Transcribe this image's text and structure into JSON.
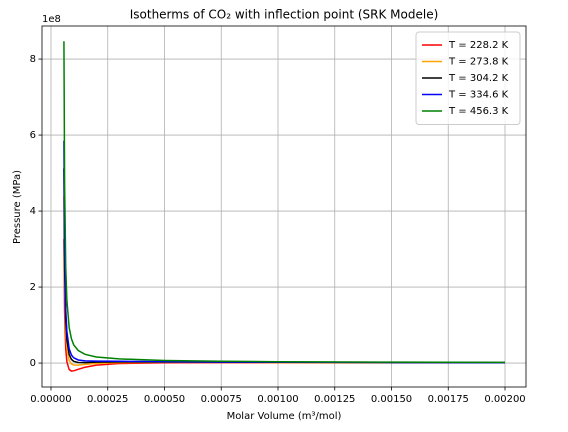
{
  "chart_data": {
    "type": "line",
    "title": "Isotherms of CO₂ with inflection point (SRK Modele)",
    "x_label": "Molar Volume (m³/mol)",
    "y_label": "Pressure (MPa)",
    "y_offset_label": "1e8",
    "x": [
      5.7e-05,
      6e-05,
      6.5e-05,
      7e-05,
      8e-05,
      9e-05,
      0.0001,
      0.00012,
      0.00015,
      0.0002,
      0.0003,
      0.0005,
      0.00075,
      0.001,
      0.0015,
      0.002
    ],
    "series": [
      {
        "name": "T = 228.2 K",
        "color": "#ff0000",
        "values": [
          3.26,
          1.34,
          0.37,
          0.036,
          -0.171,
          -0.21,
          -0.204,
          -0.164,
          -0.109,
          -0.055,
          -0.011,
          0.0088,
          0.0118,
          0.0112,
          0.0091,
          0.0074
        ]
      },
      {
        "name": "T = 273.8 K",
        "color": "#ffa500",
        "values": [
          4.38,
          2.04,
          0.83,
          0.387,
          0.072,
          -0.022,
          -0.052,
          -0.054,
          -0.034,
          -0.007,
          0.015,
          0.021,
          0.019,
          0.016,
          0.012,
          0.0097
        ]
      },
      {
        "name": "T = 304.2 K",
        "color": "#000000",
        "values": [
          5.12,
          2.5,
          1.12,
          0.61,
          0.227,
          0.097,
          0.045,
          0.014,
          0.013,
          0.023,
          0.031,
          0.029,
          0.024,
          0.02,
          0.014,
          0.011
        ]
      },
      {
        "name": "T = 334.6 K",
        "color": "#0000ff",
        "values": [
          5.85,
          2.95,
          1.41,
          0.83,
          0.377,
          0.212,
          0.138,
          0.081,
          0.059,
          0.052,
          0.047,
          0.037,
          0.028,
          0.023,
          0.016,
          0.0126
        ]
      },
      {
        "name": "T = 456.3 K",
        "color": "#008000",
        "values": [
          8.47,
          4.68,
          2.51,
          1.65,
          0.94,
          0.64,
          0.48,
          0.33,
          0.23,
          0.16,
          0.11,
          0.067,
          0.046,
          0.035,
          0.024,
          0.018
        ]
      }
    ],
    "xlim": [
      -3.96e-05,
      0.0020925
    ],
    "ylim": [
      -0.63,
      8.87
    ],
    "xticks": [
      {
        "value": 0,
        "label": "0.00000"
      },
      {
        "value": 0.00025,
        "label": "0.00025"
      },
      {
        "value": 0.0005,
        "label": "0.00050"
      },
      {
        "value": 0.00075,
        "label": "0.00075"
      },
      {
        "value": 0.001,
        "label": "0.00100"
      },
      {
        "value": 0.00125,
        "label": "0.00125"
      },
      {
        "value": 0.0015,
        "label": "0.00150"
      },
      {
        "value": 0.00175,
        "label": "0.00175"
      },
      {
        "value": 0.002,
        "label": "0.00200"
      }
    ],
    "yticks": [
      0,
      2,
      4,
      6,
      8
    ],
    "grid": true,
    "legend": "upper right"
  }
}
